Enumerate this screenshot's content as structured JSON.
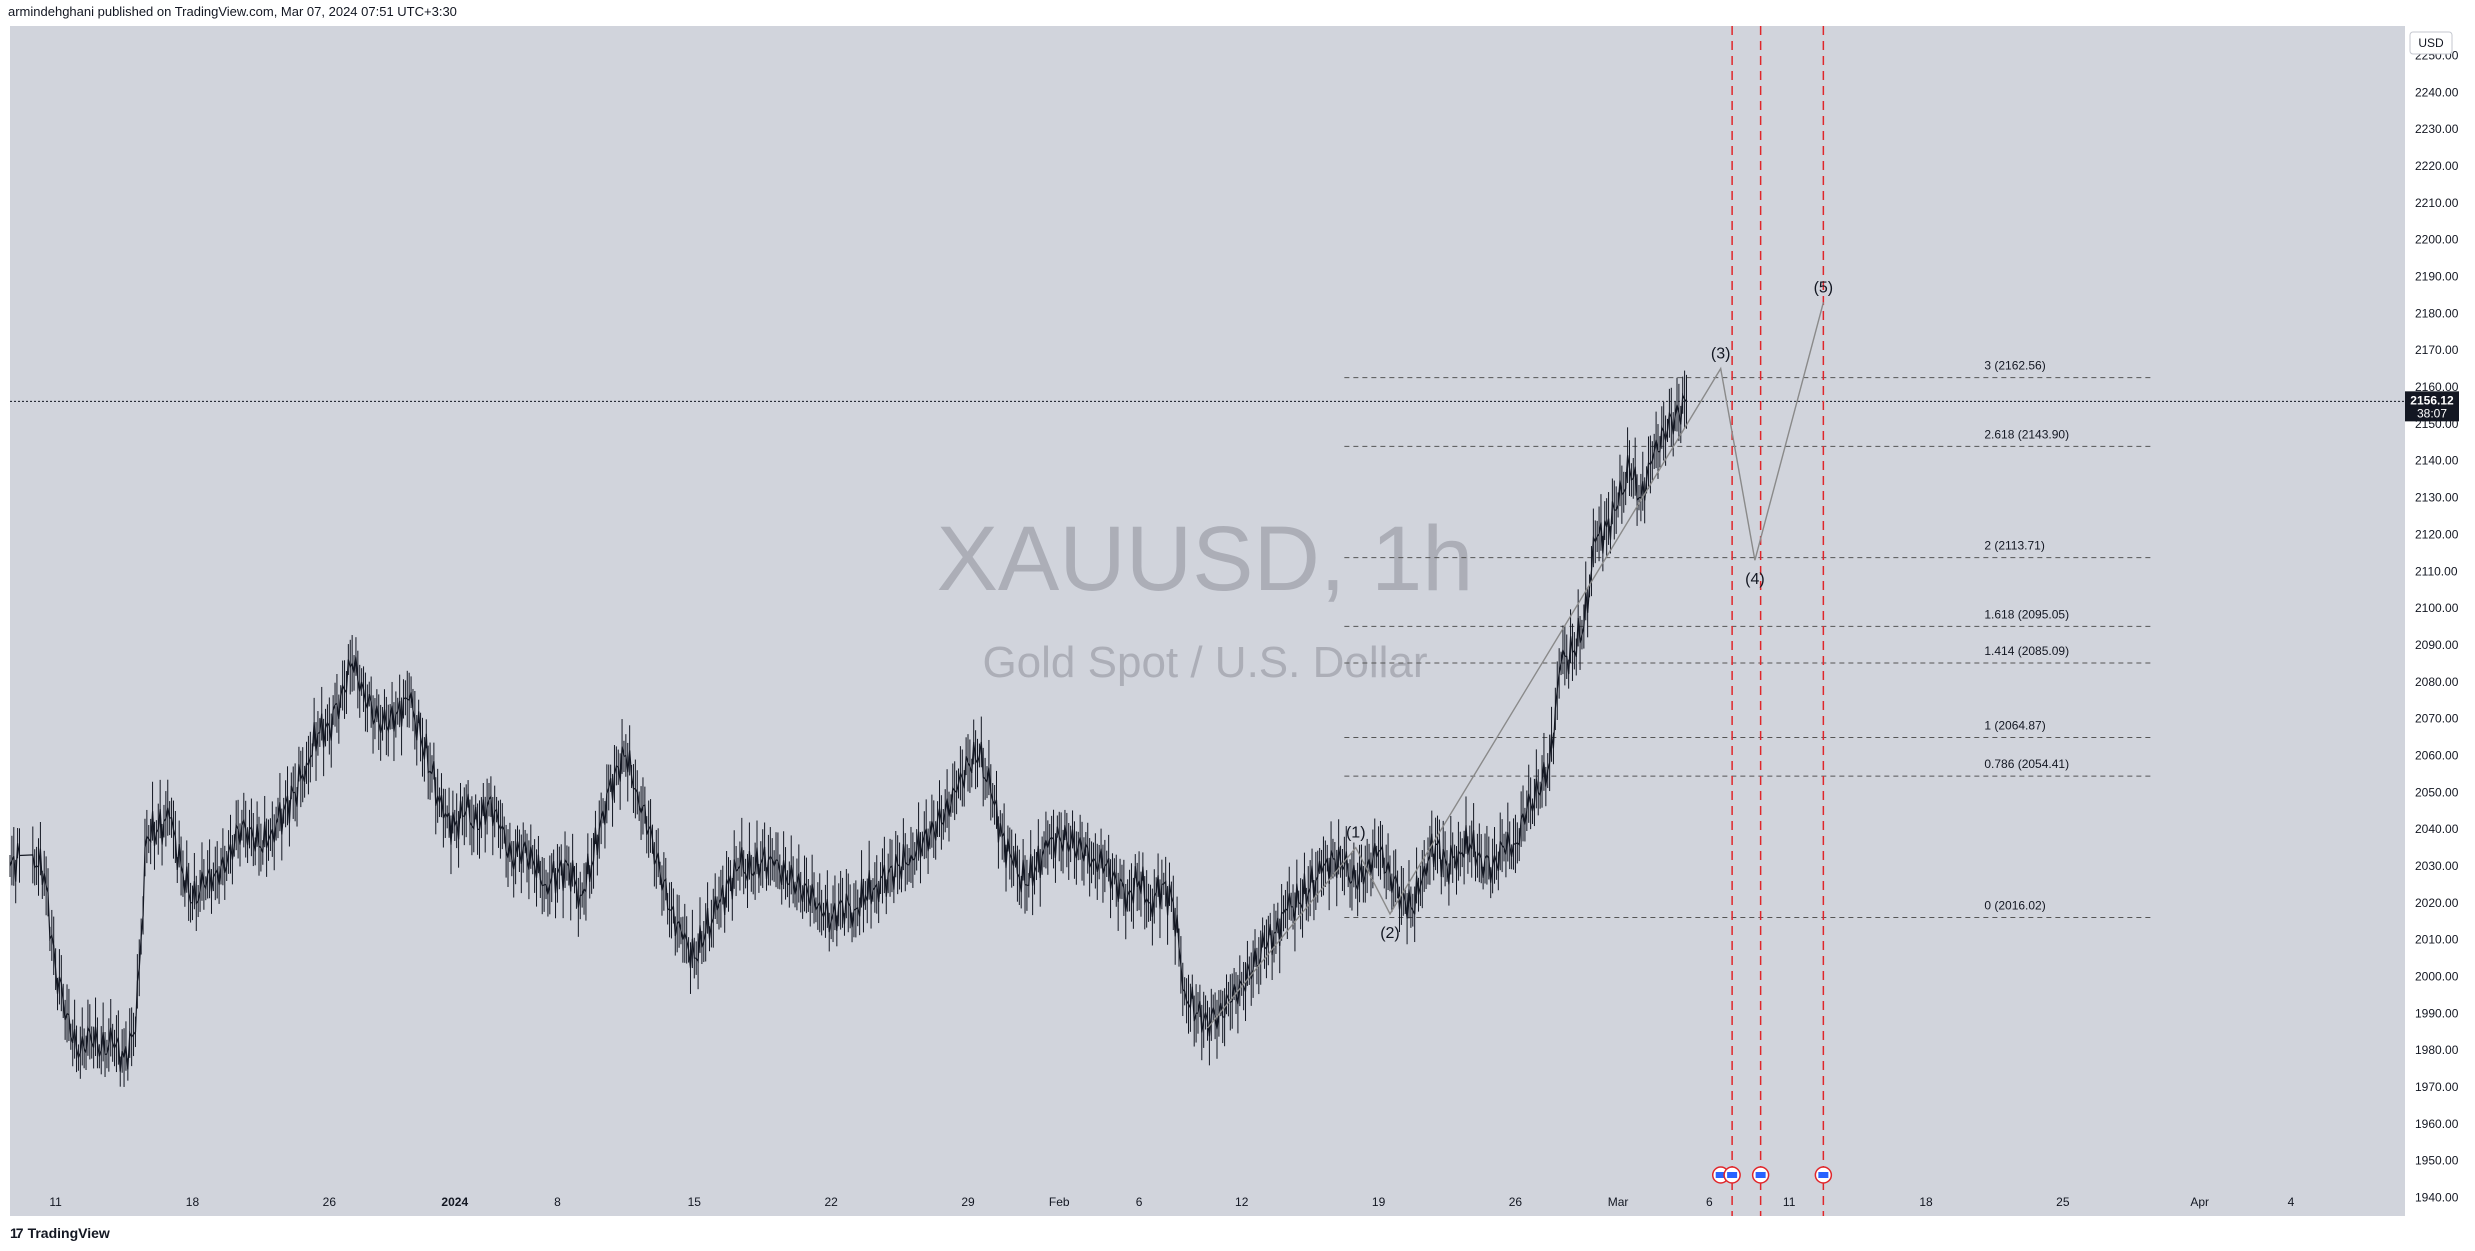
{
  "header": {
    "published_by": "armindehghani published on TradingView.com, Mar 07, 2024 07:51 UTC+3:30"
  },
  "footer": {
    "brand": "TradingView"
  },
  "colors": {
    "background": "#d1d4dc",
    "candle": "#131722",
    "fib_line": "#555555",
    "wave_line": "#8a8a8a",
    "vline": "#e0262b",
    "watermark": "#9fa2ab",
    "price_badge": "#131722"
  },
  "chart_data": {
    "type": "line",
    "symbol": "XAUUSD, 1h",
    "description": "Gold Spot / U.S. Dollar",
    "currency": "USD",
    "last_price": "2156.12",
    "countdown": "38:07",
    "ylim": [
      1935,
      2258
    ],
    "y_ticks": [
      1940,
      1950,
      1960,
      1970,
      1980,
      1990,
      2000,
      2010,
      2020,
      2030,
      2040,
      2050,
      2060,
      2070,
      2080,
      2090,
      2100,
      2110,
      2120,
      2130,
      2140,
      2150,
      2160,
      2170,
      2180,
      2190,
      2200,
      2210,
      2220,
      2230,
      2240,
      2250
    ],
    "x_ticks": [
      {
        "label": "11",
        "i": 4
      },
      {
        "label": "18",
        "i": 16
      },
      {
        "label": "26",
        "i": 28
      },
      {
        "label": "2024",
        "i": 39,
        "bold": true
      },
      {
        "label": "8",
        "i": 48
      },
      {
        "label": "15",
        "i": 60
      },
      {
        "label": "22",
        "i": 72
      },
      {
        "label": "29",
        "i": 84
      },
      {
        "label": "Feb",
        "i": 92
      },
      {
        "label": "6",
        "i": 99
      },
      {
        "label": "12",
        "i": 108
      },
      {
        "label": "19",
        "i": 120
      },
      {
        "label": "26",
        "i": 132
      },
      {
        "label": "Mar",
        "i": 141
      },
      {
        "label": "6",
        "i": 149
      },
      {
        "label": "11",
        "i": 156
      },
      {
        "label": "18",
        "i": 168
      },
      {
        "label": "25",
        "i": 180
      },
      {
        "label": "Apr",
        "i": 192
      },
      {
        "label": "4",
        "i": 200
      }
    ],
    "x_range_days": [
      0,
      210
    ],
    "price_path": [
      [
        0,
        2030
      ],
      [
        2,
        2033
      ],
      [
        3,
        2028
      ],
      [
        4,
        2002
      ],
      [
        5,
        1990
      ],
      [
        6,
        1978
      ],
      [
        7,
        1985
      ],
      [
        8,
        1980
      ],
      [
        9,
        1982
      ],
      [
        10,
        1978
      ],
      [
        11,
        1985
      ],
      [
        12,
        2038
      ],
      [
        13,
        2040
      ],
      [
        14,
        2043
      ],
      [
        15,
        2030
      ],
      [
        16,
        2020
      ],
      [
        17,
        2025
      ],
      [
        18,
        2028
      ],
      [
        19,
        2030
      ],
      [
        20,
        2040
      ],
      [
        21,
        2040
      ],
      [
        22,
        2035
      ],
      [
        23,
        2040
      ],
      [
        24,
        2045
      ],
      [
        25,
        2050
      ],
      [
        26,
        2058
      ],
      [
        27,
        2066
      ],
      [
        28,
        2068
      ],
      [
        29,
        2076
      ],
      [
        30,
        2085
      ],
      [
        31,
        2078
      ],
      [
        32,
        2070
      ],
      [
        33,
        2068
      ],
      [
        34,
        2072
      ],
      [
        35,
        2075
      ],
      [
        36,
        2065
      ],
      [
        37,
        2055
      ],
      [
        38,
        2043
      ],
      [
        39,
        2041
      ],
      [
        40,
        2045
      ],
      [
        41,
        2040
      ],
      [
        42,
        2048
      ],
      [
        43,
        2040
      ],
      [
        44,
        2032
      ],
      [
        45,
        2035
      ],
      [
        46,
        2030
      ],
      [
        47,
        2025
      ],
      [
        48,
        2028
      ],
      [
        49,
        2030
      ],
      [
        50,
        2022
      ],
      [
        51,
        2030
      ],
      [
        52,
        2045
      ],
      [
        53,
        2055
      ],
      [
        54,
        2060
      ],
      [
        55,
        2050
      ],
      [
        56,
        2040
      ],
      [
        57,
        2028
      ],
      [
        58,
        2018
      ],
      [
        59,
        2010
      ],
      [
        60,
        2005
      ],
      [
        61,
        2012
      ],
      [
        62,
        2018
      ],
      [
        63,
        2025
      ],
      [
        64,
        2030
      ],
      [
        65,
        2028
      ],
      [
        66,
        2032
      ],
      [
        67,
        2030
      ],
      [
        68,
        2028
      ],
      [
        69,
        2025
      ],
      [
        70,
        2022
      ],
      [
        71,
        2020
      ],
      [
        72,
        2015
      ],
      [
        73,
        2020
      ],
      [
        74,
        2018
      ],
      [
        75,
        2022
      ],
      [
        76,
        2025
      ],
      [
        77,
        2028
      ],
      [
        78,
        2030
      ],
      [
        79,
        2033
      ],
      [
        80,
        2036
      ],
      [
        81,
        2040
      ],
      [
        82,
        2045
      ],
      [
        83,
        2050
      ],
      [
        84,
        2058
      ],
      [
        85,
        2060
      ],
      [
        86,
        2050
      ],
      [
        87,
        2038
      ],
      [
        88,
        2030
      ],
      [
        89,
        2025
      ],
      [
        90,
        2030
      ],
      [
        91,
        2035
      ],
      [
        92,
        2038
      ],
      [
        93,
        2036
      ],
      [
        94,
        2034
      ],
      [
        95,
        2032
      ],
      [
        96,
        2030
      ],
      [
        97,
        2026
      ],
      [
        98,
        2022
      ],
      [
        99,
        2026
      ],
      [
        100,
        2020
      ],
      [
        101,
        2025
      ],
      [
        102,
        2020
      ],
      [
        103,
        1996
      ],
      [
        104,
        1990
      ],
      [
        105,
        1988
      ],
      [
        106,
        1990
      ],
      [
        107,
        1993
      ],
      [
        108,
        1998
      ],
      [
        109,
        2002
      ],
      [
        110,
        2008
      ],
      [
        111,
        2012
      ],
      [
        112,
        2018
      ],
      [
        113,
        2020
      ],
      [
        114,
        2024
      ],
      [
        115,
        2028
      ],
      [
        116,
        2032
      ],
      [
        117,
        2030
      ],
      [
        118,
        2025
      ],
      [
        119,
        2030
      ],
      [
        120,
        2034
      ],
      [
        121,
        2028
      ],
      [
        122,
        2022
      ],
      [
        123,
        2018
      ],
      [
        124,
        2030
      ],
      [
        125,
        2036
      ],
      [
        126,
        2030
      ],
      [
        127,
        2034
      ],
      [
        128,
        2036
      ],
      [
        129,
        2032
      ],
      [
        130,
        2030
      ],
      [
        131,
        2035
      ],
      [
        132,
        2036
      ],
      [
        133,
        2045
      ],
      [
        134,
        2050
      ],
      [
        135,
        2058
      ],
      [
        136,
        2085
      ],
      [
        137,
        2088
      ],
      [
        138,
        2095
      ],
      [
        139,
        2118
      ],
      [
        140,
        2122
      ],
      [
        141,
        2128
      ],
      [
        142,
        2138
      ],
      [
        143,
        2130
      ],
      [
        144,
        2140
      ],
      [
        145,
        2148
      ],
      [
        146,
        2152
      ],
      [
        147,
        2156
      ]
    ],
    "wave_points": [
      {
        "label": "(1)",
        "x": 118,
        "y": 2035,
        "label_pos": "above"
      },
      {
        "label": "(2)",
        "x": 121,
        "y": 2017,
        "label_pos": "below"
      },
      {
        "label": "(3)",
        "x": 150,
        "y": 2165,
        "label_pos": "above"
      },
      {
        "label": "(4)",
        "x": 153,
        "y": 2113,
        "label_pos": "below"
      },
      {
        "label": "(5)",
        "x": 159,
        "y": 2183,
        "label_pos": "above"
      }
    ],
    "wave_start": {
      "x": 105,
      "y": 1986
    },
    "fib_levels": [
      {
        "ratio": "3",
        "value": 2162.56,
        "label": "3 (2162.56)"
      },
      {
        "ratio": "2.618",
        "value": 2143.9,
        "label": "2.618 (2143.90)"
      },
      {
        "ratio": "2",
        "value": 2113.71,
        "label": "2 (2113.71)"
      },
      {
        "ratio": "1.618",
        "value": 2095.05,
        "label": "1.618 (2095.05)"
      },
      {
        "ratio": "1.414",
        "value": 2085.09,
        "label": "1.414 (2085.09)"
      },
      {
        "ratio": "1",
        "value": 2064.87,
        "label": "1 (2064.87)"
      },
      {
        "ratio": "0.786",
        "value": 2054.41,
        "label": "0.786 (2054.41)"
      },
      {
        "ratio": "0",
        "value": 2016.02,
        "label": "0 (2016.02)"
      }
    ],
    "fib_x_range": [
      117,
      188
    ],
    "vertical_markers": [
      151,
      153.5,
      159
    ],
    "event_icons": [
      150,
      151,
      153.5,
      159
    ]
  }
}
